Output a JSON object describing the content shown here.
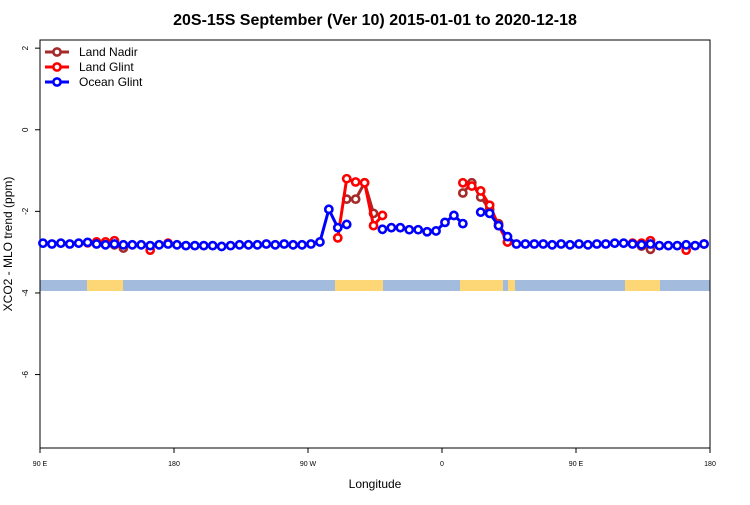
{
  "chart_data": {
    "type": "line",
    "title": "20S-15S September (Ver 10)   2015-01-01 to 2020-12-18",
    "x_label": "Longitude",
    "y_label": "XCO2 - MLO trend (ppm)",
    "x": [
      92,
      98,
      104,
      110,
      116,
      122,
      128,
      134,
      140,
      146,
      152,
      158,
      164,
      170,
      176,
      182,
      188,
      194,
      200,
      206,
      212,
      218,
      224,
      230,
      236,
      242,
      248,
      254,
      260,
      266,
      272,
      278,
      284,
      290,
      296,
      302,
      308,
      314,
      320,
      326,
      332,
      338,
      344,
      350,
      356,
      362,
      368,
      374,
      380,
      386,
      392,
      398,
      404,
      410,
      416,
      422,
      428,
      434,
      440,
      446,
      452,
      458,
      464,
      470,
      476,
      482,
      488,
      494,
      500,
      506,
      512,
      518,
      524,
      530,
      536
    ],
    "series": [
      {
        "name": "Land Nadir",
        "color": "#a52a2a",
        "values": [
          null,
          null,
          null,
          null,
          null,
          null,
          null,
          -2.8,
          -2.82,
          -2.9,
          null,
          null,
          null,
          null,
          null,
          null,
          null,
          null,
          null,
          null,
          null,
          null,
          null,
          null,
          null,
          null,
          null,
          null,
          null,
          null,
          null,
          null,
          null,
          null,
          -1.7,
          -1.7,
          -1.3,
          -2.05,
          null,
          null,
          null,
          null,
          null,
          null,
          null,
          null,
          null,
          -1.55,
          -1.3,
          -1.65,
          -1.95,
          -2.3,
          -2.75,
          null,
          null,
          null,
          null,
          null,
          null,
          null,
          null,
          null,
          null,
          null,
          null,
          null,
          null,
          -2.85,
          -2.93,
          null,
          null,
          null,
          null,
          null,
          null
        ]
      },
      {
        "name": "Land Glint",
        "color": "#ff0000",
        "values": [
          null,
          null,
          null,
          null,
          null,
          -2.77,
          -2.75,
          -2.75,
          -2.72,
          null,
          null,
          null,
          -2.95,
          null,
          -2.78,
          null,
          null,
          null,
          null,
          null,
          null,
          null,
          null,
          null,
          null,
          null,
          null,
          null,
          null,
          null,
          null,
          null,
          null,
          -2.65,
          -1.2,
          -1.28,
          -1.3,
          -2.35,
          -2.1,
          null,
          null,
          null,
          null,
          null,
          null,
          null,
          null,
          -1.3,
          -1.38,
          -1.5,
          -1.85,
          -2.35,
          -2.75,
          null,
          null,
          null,
          null,
          null,
          null,
          null,
          null,
          null,
          null,
          null,
          null,
          null,
          -2.78,
          -2.78,
          -2.72,
          null,
          null,
          null,
          -2.95,
          null,
          -2.8
        ]
      },
      {
        "name": "Ocean Glint",
        "color": "#0000ff",
        "values": [
          -2.78,
          -2.8,
          -2.78,
          -2.8,
          -2.78,
          -2.76,
          -2.8,
          -2.82,
          -2.8,
          -2.82,
          -2.82,
          -2.82,
          -2.84,
          -2.82,
          -2.8,
          -2.82,
          -2.84,
          -2.84,
          -2.84,
          -2.84,
          -2.86,
          -2.84,
          -2.82,
          -2.82,
          -2.82,
          -2.8,
          -2.82,
          -2.8,
          -2.82,
          -2.82,
          -2.8,
          -2.75,
          -1.95,
          -2.4,
          -2.32,
          null,
          null,
          null,
          -2.44,
          -2.4,
          -2.4,
          -2.45,
          -2.45,
          -2.5,
          -2.48,
          -2.27,
          -2.1,
          -2.3,
          null,
          -2.02,
          -2.05,
          -2.35,
          -2.62,
          -2.8,
          -2.8,
          -2.8,
          -2.8,
          -2.82,
          -2.8,
          -2.82,
          -2.8,
          -2.82,
          -2.8,
          -2.8,
          -2.78,
          -2.78,
          -2.8,
          -2.82,
          -2.8,
          -2.84,
          -2.84,
          -2.84,
          -2.82,
          -2.84,
          -2.8
        ]
      }
    ],
    "xlim": [
      90,
      540
    ],
    "xticks": [
      {
        "value": 90,
        "label": "90 E"
      },
      {
        "value": 180,
        "label": "180"
      },
      {
        "value": 270,
        "label": "90 W"
      },
      {
        "value": 360,
        "label": "0"
      },
      {
        "value": 450,
        "label": "90 E"
      },
      {
        "value": 540,
        "label": "180"
      }
    ],
    "ylim": [
      -7.8,
      2.2
    ],
    "yticks": [
      2,
      0,
      -2,
      -4,
      -6
    ],
    "legend": "top-left"
  }
}
